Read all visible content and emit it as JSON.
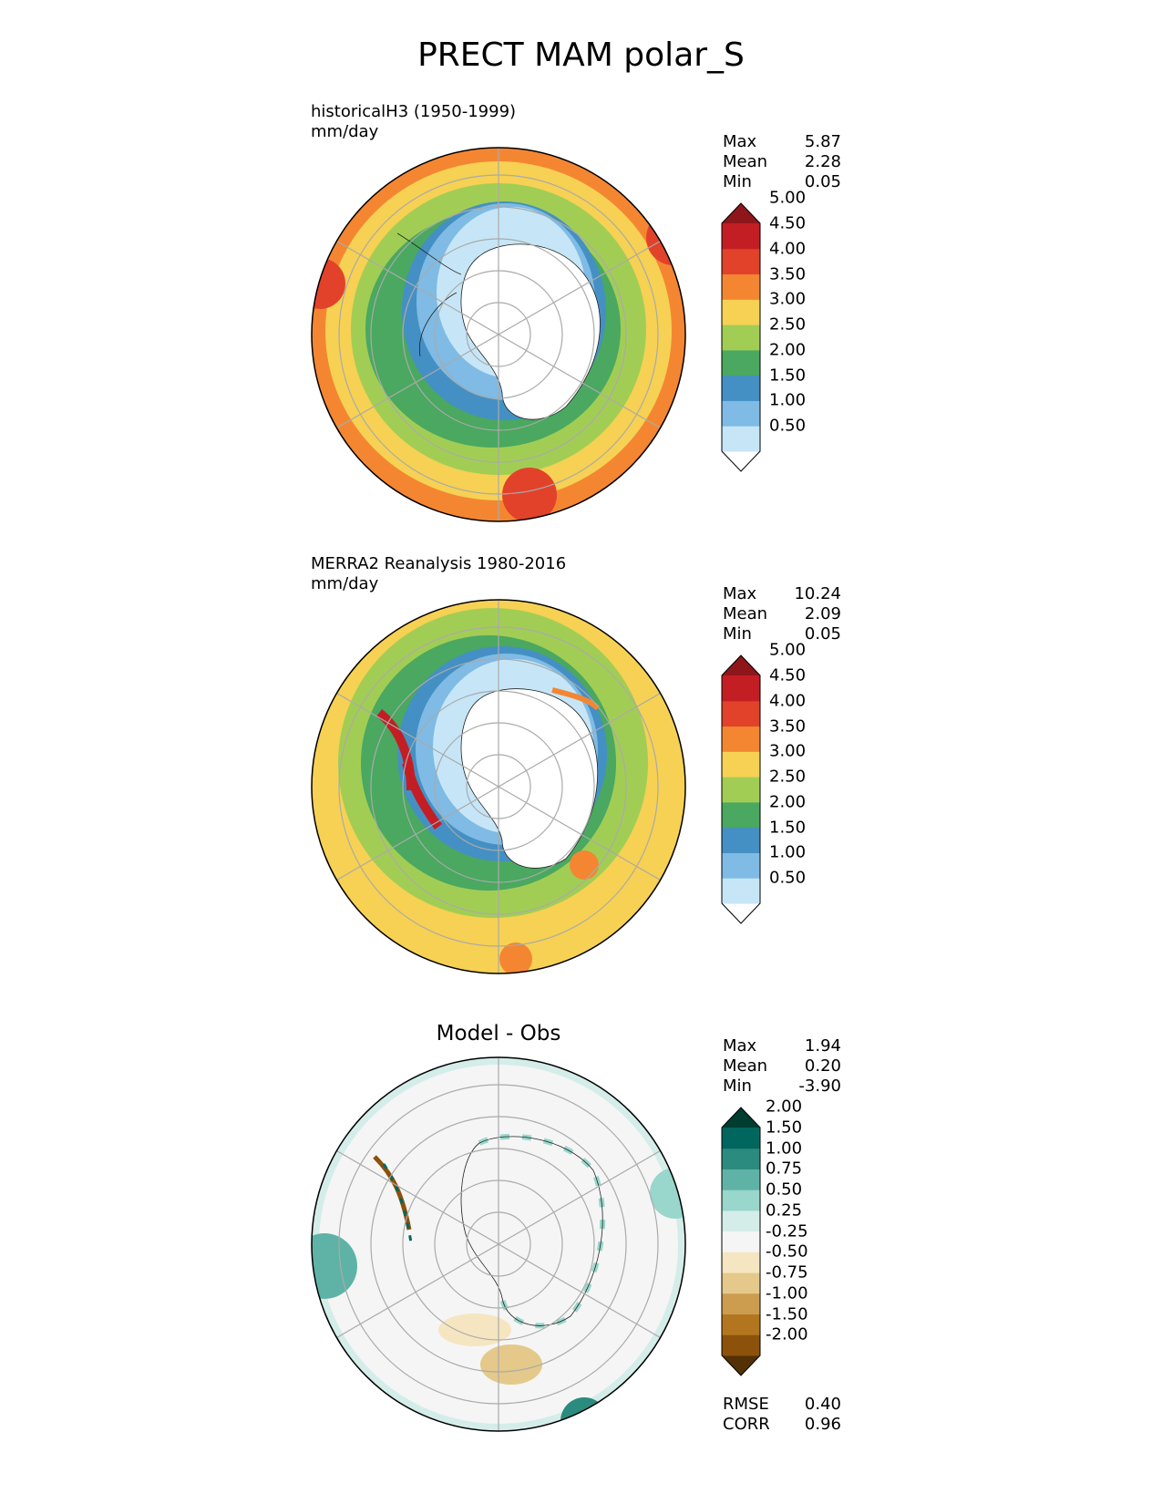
{
  "figure": {
    "title": "PRECT MAM polar_S"
  },
  "panels": [
    {
      "id": "model",
      "label_line1": "historicalH3 (1950-1999)",
      "label_line2": "mm/day",
      "stats": [
        {
          "name": "Max",
          "value": "5.87"
        },
        {
          "name": "Mean",
          "value": "2.28"
        },
        {
          "name": "Min",
          "value": "0.05"
        }
      ],
      "colorbar": {
        "levels": [
          "0.50",
          "1.00",
          "1.50",
          "2.00",
          "2.50",
          "3.00",
          "3.50",
          "4.00",
          "4.50",
          "5.00"
        ],
        "colors": [
          "#ffffff",
          "#c6e6f7",
          "#7fbbe4",
          "#4490c4",
          "#4aa860",
          "#a2cd55",
          "#f6d153",
          "#f48632",
          "#e2422a",
          "#c41e25",
          "#8e161b"
        ]
      }
    },
    {
      "id": "obs",
      "label_line1": "MERRA2 Reanalysis 1980-2016",
      "label_line2": "mm/day",
      "stats": [
        {
          "name": "Max",
          "value": "10.24"
        },
        {
          "name": "Mean",
          "value": "2.09"
        },
        {
          "name": "Min",
          "value": "0.05"
        }
      ],
      "colorbar": {
        "levels": [
          "0.50",
          "1.00",
          "1.50",
          "2.00",
          "2.50",
          "3.00",
          "3.50",
          "4.00",
          "4.50",
          "5.00"
        ],
        "colors": [
          "#ffffff",
          "#c6e6f7",
          "#7fbbe4",
          "#4490c4",
          "#4aa860",
          "#a2cd55",
          "#f6d153",
          "#f48632",
          "#e2422a",
          "#c41e25",
          "#8e161b"
        ]
      }
    },
    {
      "id": "diff",
      "title": "Model - Obs",
      "stats": [
        {
          "name": "Max",
          "value": "1.94"
        },
        {
          "name": "Mean",
          "value": "0.20"
        },
        {
          "name": "Min",
          "value": "-3.90"
        }
      ],
      "colorbar": {
        "levels": [
          "-2.00",
          "-1.50",
          "-1.00",
          "-0.75",
          "-0.50",
          "-0.25",
          "0.25",
          "0.50",
          "0.75",
          "1.00",
          "1.50",
          "2.00"
        ],
        "colors": [
          "#543005",
          "#8c510a",
          "#b3761f",
          "#cc9c4f",
          "#e4c98a",
          "#f5e6c1",
          "#f5f5f5",
          "#d4ede9",
          "#99d6cb",
          "#5fb3a6",
          "#2b8b7e",
          "#01665e",
          "#003c30"
        ]
      },
      "metrics": [
        {
          "name": "RMSE",
          "value": "0.40"
        },
        {
          "name": "CORR",
          "value": "0.96"
        }
      ]
    }
  ]
}
